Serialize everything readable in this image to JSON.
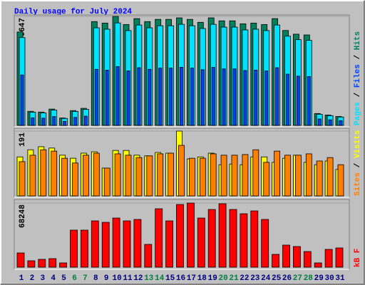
{
  "chart_data": [
    {
      "type": "bar",
      "title": "Daily usage for July 2024",
      "ylim": [
        0,
        6647
      ],
      "legend_separator": "/",
      "series": [
        {
          "name": "Hits",
          "color": "#00805c",
          "values": [
            5697,
            859,
            814,
            995,
            452,
            904,
            1040,
            6331,
            6240,
            6647,
            6150,
            6512,
            6331,
            6466,
            6466,
            6557,
            6466,
            6286,
            6557,
            6376,
            6376,
            6195,
            6240,
            6150,
            6512,
            5788,
            5562,
            5517,
            724,
            633,
            543
          ]
        },
        {
          "name": "Files",
          "color": "#0040ff",
          "values": [
            3076,
            464,
            440,
            537,
            244,
            488,
            562,
            3419,
            3370,
            3589,
            3321,
            3516,
            3419,
            3492,
            3492,
            3541,
            3492,
            3394,
            3541,
            3443,
            3443,
            3345,
            3370,
            3321,
            3516,
            3126,
            3003,
            2979,
            391,
            342,
            293
          ]
        },
        {
          "name": "Pages",
          "color": "#00e0ff",
          "values": [
            5355,
            808,
            765,
            935,
            425,
            850,
            978,
            5951,
            5866,
            6248,
            5781,
            6121,
            5951,
            6078,
            6078,
            6164,
            6078,
            5909,
            6164,
            5993,
            5993,
            5823,
            5866,
            5781,
            6121,
            5441,
            5228,
            5186,
            681,
            595,
            510
          ]
        }
      ]
    },
    {
      "type": "bar",
      "ylim": [
        0,
        191
      ],
      "legend_separator": "/",
      "series": [
        {
          "name": "Visits",
          "color": "#ffff00",
          "values": [
            115,
            136,
            145,
            141,
            120,
            111,
            126,
            130,
            82,
            134,
            134,
            120,
            118,
            128,
            126,
            191,
            109,
            115,
            126,
            92,
            94,
            92,
            115,
            115,
            99,
            111,
            120,
            99,
            92,
            103,
            78
          ]
        },
        {
          "name": "Sites",
          "color": "#ff8000",
          "values": [
            101,
            120,
            136,
            132,
            111,
            97,
            120,
            126,
            82,
            124,
            120,
            113,
            118,
            124,
            126,
            149,
            111,
            111,
            124,
            120,
            120,
            122,
            136,
            99,
            132,
            120,
            120,
            124,
            103,
            113,
            92
          ]
        }
      ]
    },
    {
      "type": "bar",
      "ylim": [
        0,
        68248
      ],
      "categories": [
        "1",
        "2",
        "3",
        "4",
        "5",
        "6",
        "7",
        "8",
        "9",
        "10",
        "11",
        "12",
        "13",
        "14",
        "15",
        "16",
        "17",
        "18",
        "19",
        "20",
        "21",
        "22",
        "23",
        "24",
        "25",
        "26",
        "27",
        "28",
        "29",
        "30",
        "31"
      ],
      "category_colors": [
        "#000080",
        "#000080",
        "#000080",
        "#000080",
        "#000080",
        "#008040",
        "#008040",
        "#000080",
        "#000080",
        "#000080",
        "#000080",
        "#000080",
        "#008040",
        "#008040",
        "#000080",
        "#000080",
        "#000080",
        "#000080",
        "#000080",
        "#008040",
        "#008040",
        "#000080",
        "#000080",
        "#000080",
        "#000080",
        "#000080",
        "#008040",
        "#008040",
        "#000080",
        "#000080",
        "#000080"
      ],
      "series": [
        {
          "name": "kB F",
          "color": "#ff0000",
          "values": [
            15166,
            6825,
            8341,
            9100,
            4550,
            39432,
            39432,
            49290,
            47772,
            52323,
            49290,
            50807,
            24266,
            62181,
            49290,
            66731,
            68248,
            52323,
            61423,
            67490,
            61423,
            56873,
            59906,
            50807,
            13650,
            23507,
            21990,
            16683,
            4550,
            18958,
            20474
          ]
        }
      ]
    }
  ]
}
